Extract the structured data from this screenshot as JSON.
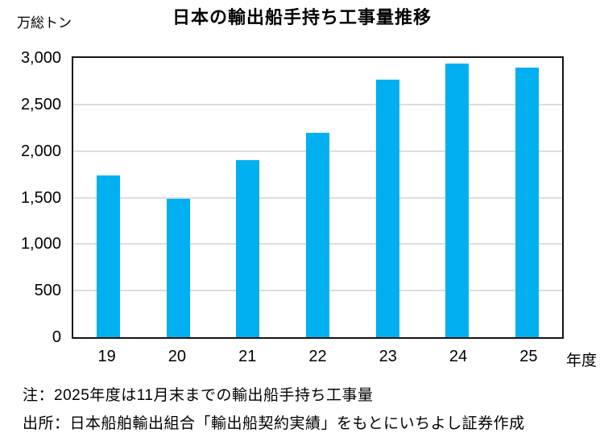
{
  "title": "日本の輸出船手持ち工事量推移",
  "y_unit_label": "万総トン",
  "x_unit_label": "年度",
  "notes": [
    "注：2025年度は11月末までの輸出船手持ち工事量",
    "出所：日本船舶輸出組合「輸出船契約実績」をもとにいちよし証券作成"
  ],
  "colors": {
    "bar": "#00B0F0",
    "grid": "#dcdcdc",
    "border": "#141414",
    "text": "#000000"
  },
  "chart_data": {
    "type": "bar",
    "title": "日本の輸出船手持ち工事量推移",
    "categories": [
      "19",
      "20",
      "21",
      "22",
      "23",
      "24",
      "25"
    ],
    "values": [
      1740,
      1490,
      1900,
      2200,
      2770,
      2940,
      2900
    ],
    "xlabel": "年度",
    "ylabel": "万総トン",
    "ylim": [
      0,
      3000
    ],
    "ytick_step": 500,
    "yticks": [
      "0",
      "500",
      "1,000",
      "1,500",
      "2,000",
      "2,500",
      "3,000"
    ],
    "grid": true,
    "legend": false,
    "annotations": [
      "注：2025年度は11月末までの輸出船手持ち工事量",
      "出所：日本船舶輸出組合「輸出船契約実績」をもとにいちよし証券作成"
    ]
  }
}
